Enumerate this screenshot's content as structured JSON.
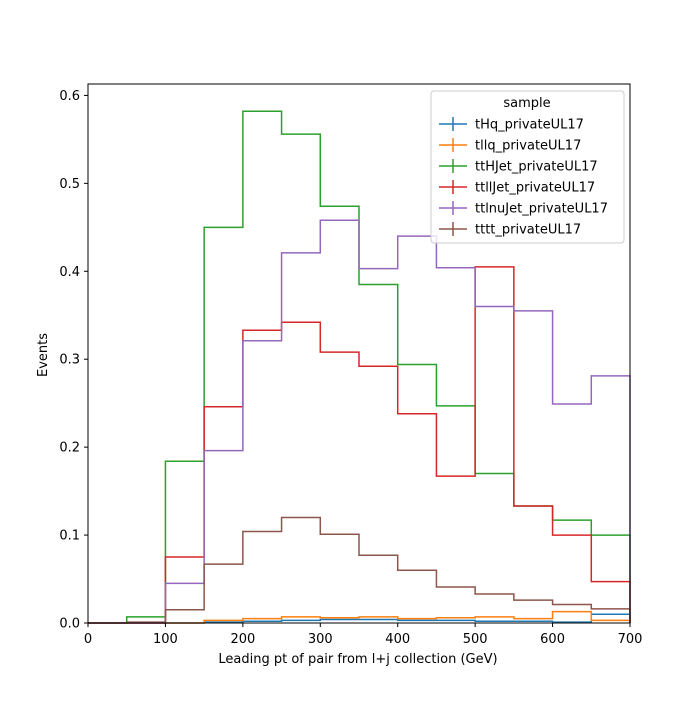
{
  "chart_data": {
    "type": "step-histogram",
    "xlabel": "Leading pt of pair from l+j collection (GeV)",
    "ylabel": "Events",
    "xlim": [
      0,
      700
    ],
    "ylim": [
      0,
      0.613
    ],
    "xticks": [
      "0",
      "100",
      "200",
      "300",
      "400",
      "500",
      "600",
      "700"
    ],
    "yticks": [
      "0.0",
      "0.1",
      "0.2",
      "0.3",
      "0.4",
      "0.5",
      "0.6"
    ],
    "legend_title": "sample",
    "legend_position": "top-right",
    "bin_edges": [
      0,
      50,
      100,
      150,
      200,
      250,
      300,
      350,
      400,
      450,
      500,
      550,
      600,
      650,
      700
    ],
    "series": [
      {
        "name": "tHq_privateUL17",
        "color": "#1f77b4",
        "values": [
          0.0,
          0.0,
          0.0,
          0.001,
          0.002,
          0.003,
          0.004,
          0.004,
          0.003,
          0.003,
          0.002,
          0.002,
          0.001,
          0.01
        ]
      },
      {
        "name": "tllq_privateUL17",
        "color": "#ff7f0e",
        "values": [
          0.0,
          0.0,
          0.0,
          0.003,
          0.005,
          0.007,
          0.006,
          0.007,
          0.005,
          0.006,
          0.007,
          0.005,
          0.013,
          0.003
        ]
      },
      {
        "name": "ttHJet_privateUL17",
        "color": "#2ca02c",
        "values": [
          0.0,
          0.007,
          0.184,
          0.45,
          0.582,
          0.556,
          0.474,
          0.385,
          0.294,
          0.247,
          0.17,
          0.133,
          0.117,
          0.1
        ]
      },
      {
        "name": "ttllJet_privateUL17",
        "color": "#d62728",
        "values": [
          0.0,
          0.0,
          0.075,
          0.246,
          0.333,
          0.342,
          0.308,
          0.292,
          0.238,
          0.167,
          0.405,
          0.133,
          0.1,
          0.047
        ]
      },
      {
        "name": "ttlnuJet_privateUL17",
        "color": "#9467bd",
        "values": [
          0.0,
          0.0,
          0.045,
          0.196,
          0.321,
          0.421,
          0.458,
          0.403,
          0.44,
          0.404,
          0.36,
          0.355,
          0.249,
          0.281
        ]
      },
      {
        "name": "tttt_privateUL17",
        "color": "#8c564b",
        "values": [
          0.0,
          0.001,
          0.015,
          0.067,
          0.104,
          0.12,
          0.101,
          0.077,
          0.06,
          0.041,
          0.033,
          0.026,
          0.021,
          0.016
        ]
      }
    ]
  }
}
